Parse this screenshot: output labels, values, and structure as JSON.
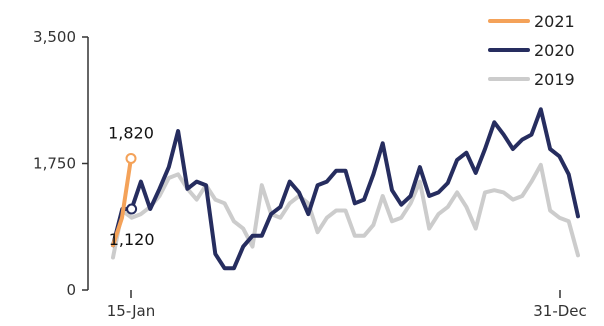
{
  "chart_data": {
    "type": "line",
    "x_tick_labels": [
      "15-Jan",
      "31-Dec"
    ],
    "y_tick_labels": [
      "0",
      "1,750",
      "3,500"
    ],
    "ylim": [
      0,
      3500
    ],
    "grid": false,
    "legend_position": "top-right",
    "series": [
      {
        "name": "2021",
        "color": "#f4a259",
        "values": [
          620,
          1000,
          1820
        ]
      },
      {
        "name": "2020",
        "color": "#262d5f",
        "values": [
          620,
          1120,
          1120,
          1500,
          1120,
          1400,
          1700,
          2200,
          1400,
          1500,
          1450,
          500,
          300,
          300,
          600,
          750,
          750,
          1050,
          1150,
          1500,
          1350,
          1050,
          1450,
          1500,
          1650,
          1650,
          1200,
          1250,
          1600,
          2030,
          1380,
          1180,
          1300,
          1700,
          1300,
          1350,
          1480,
          1800,
          1900,
          1620,
          1950,
          2320,
          2150,
          1950,
          2080,
          2150,
          2500,
          1950,
          1850,
          1600,
          1020
        ]
      },
      {
        "name": "2019",
        "color": "#cccccc",
        "values": [
          450,
          1100,
          1000,
          1050,
          1150,
          1300,
          1550,
          1600,
          1400,
          1250,
          1450,
          1250,
          1200,
          950,
          850,
          600,
          1450,
          1050,
          1000,
          1200,
          1300,
          1200,
          800,
          1000,
          1100,
          1100,
          750,
          750,
          900,
          1300,
          950,
          1000,
          1200,
          1500,
          850,
          1050,
          1150,
          1350,
          1150,
          850,
          1350,
          1380,
          1350,
          1250,
          1300,
          1500,
          1730,
          1100,
          1000,
          950,
          480
        ]
      }
    ],
    "annotations": [
      {
        "label": "1,820",
        "series": "2021",
        "index": 2,
        "value": 1820
      },
      {
        "label": "1,120",
        "series": "2020",
        "index": 2,
        "value": 1120
      }
    ]
  }
}
